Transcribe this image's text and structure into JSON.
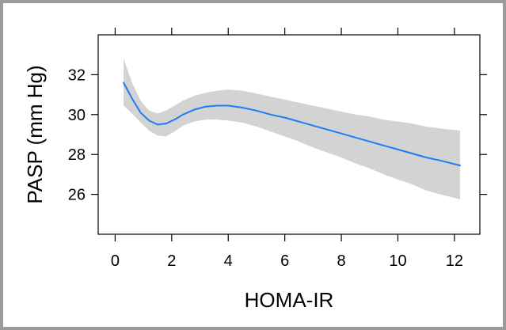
{
  "chart_data": {
    "type": "line",
    "title": "",
    "xlabel": "HOMA-IR",
    "ylabel": "PASP (mm Hg)",
    "xlim": [
      -0.6,
      12.9
    ],
    "ylim": [
      24.0,
      34.0
    ],
    "x_ticks": [
      0,
      2,
      4,
      6,
      8,
      10,
      12
    ],
    "y_ticks": [
      26,
      28,
      30,
      32
    ],
    "grid": false,
    "legend": "none",
    "colors": {
      "line": "#1a7ef0",
      "band": "#d3d3d3",
      "axis": "#000000",
      "frame": "#9a9a9a"
    },
    "series": [
      {
        "x": [
          0.3,
          0.6,
          0.9,
          1.2,
          1.5,
          1.8,
          2.1,
          2.4,
          2.8,
          3.2,
          3.6,
          4.0,
          4.5,
          5.0,
          5.5,
          6.0,
          6.5,
          7.0,
          7.5,
          8.0,
          8.5,
          9.0,
          9.5,
          10.0,
          10.5,
          11.0,
          11.5,
          12.2
        ],
        "y": [
          31.6,
          30.8,
          30.1,
          29.7,
          29.5,
          29.55,
          29.75,
          30.0,
          30.25,
          30.4,
          30.45,
          30.45,
          30.35,
          30.2,
          30.0,
          29.85,
          29.65,
          29.45,
          29.25,
          29.05,
          28.85,
          28.65,
          28.45,
          28.25,
          28.05,
          27.85,
          27.7,
          27.45
        ],
        "lower": [
          30.45,
          30.05,
          29.6,
          29.2,
          28.95,
          28.9,
          29.15,
          29.45,
          29.65,
          29.75,
          29.75,
          29.7,
          29.6,
          29.4,
          29.15,
          28.9,
          28.65,
          28.35,
          28.1,
          27.85,
          27.55,
          27.3,
          27.0,
          26.75,
          26.5,
          26.2,
          26.0,
          25.75
        ],
        "upper": [
          32.8,
          31.6,
          30.7,
          30.2,
          30.05,
          30.2,
          30.45,
          30.7,
          30.95,
          31.1,
          31.2,
          31.25,
          31.2,
          31.05,
          30.9,
          30.75,
          30.6,
          30.45,
          30.3,
          30.15,
          30.0,
          29.9,
          29.75,
          29.65,
          29.55,
          29.4,
          29.3,
          29.2
        ]
      }
    ]
  }
}
